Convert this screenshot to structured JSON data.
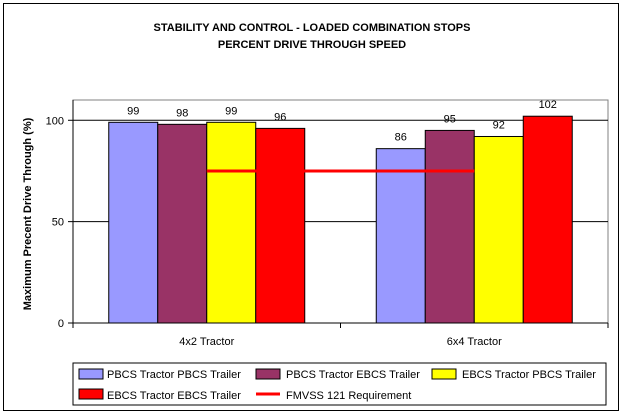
{
  "chart_data": {
    "type": "bar",
    "title": "STABILITY AND CONTROL - LOADED COMBINATION STOPS",
    "subtitle": "PERCENT DRIVE THROUGH SPEED",
    "ylabel": "Maximum Precent Drive Through (%)",
    "xlabel": "",
    "ylim": [
      0,
      110
    ],
    "yticks": [
      0,
      50,
      100
    ],
    "grid": true,
    "categories": [
      "4x2 Tractor",
      "6x4 Tractor"
    ],
    "series": [
      {
        "name": "PBCS Tractor PBCS Trailer",
        "values": [
          99,
          86
        ],
        "color": "#9999ff"
      },
      {
        "name": "PBCS Tractor EBCS Trailer",
        "values": [
          98,
          95
        ],
        "color": "#993366"
      },
      {
        "name": "EBCS Tractor PBCS Trailer",
        "values": [
          99,
          92
        ],
        "color": "#ffff00"
      },
      {
        "name": "EBCS Tractor EBCS Trailer",
        "values": [
          96,
          102
        ],
        "color": "#ff0000"
      }
    ],
    "requirement": {
      "name": "FMVSS 121 Requirement",
      "value": 75,
      "color": "#ff0000"
    },
    "legend_position": "bottom"
  }
}
